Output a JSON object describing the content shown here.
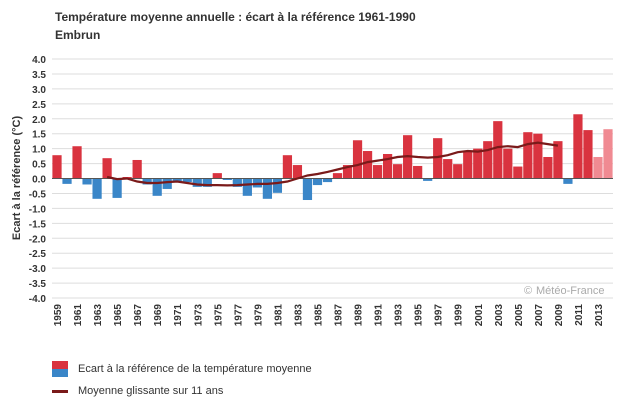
{
  "title": "Température moyenne annuelle : écart à la référence 1961-1990",
  "subtitle": "Embrun",
  "watermark": "Météo-France",
  "colors": {
    "positive": "#d9333f",
    "negative": "#3a86c8",
    "positive_provisional": "#f08a92",
    "moving_average": "#7a1a1a",
    "grid": "#dddddd"
  },
  "legend": {
    "bars_label": "Ecart à la référence de la température moyenne",
    "line_label": "Moyenne glissante sur 11 ans"
  },
  "chart_data": {
    "type": "bar",
    "ylabel": "Ecart à la référence (°C)",
    "xlabel": "",
    "ylim": [
      -4.0,
      4.0
    ],
    "ytick_step": 0.5,
    "grid": true,
    "legend_position": "bottom-left",
    "categories": [
      1959,
      1960,
      1961,
      1962,
      1963,
      1964,
      1965,
      1966,
      1967,
      1968,
      1969,
      1970,
      1971,
      1972,
      1973,
      1974,
      1975,
      1976,
      1977,
      1978,
      1979,
      1980,
      1981,
      1982,
      1983,
      1984,
      1985,
      1986,
      1987,
      1988,
      1989,
      1990,
      1991,
      1992,
      1993,
      1994,
      1995,
      1996,
      1997,
      1998,
      1999,
      2000,
      2001,
      2002,
      2003,
      2004,
      2005,
      2006,
      2007,
      2008,
      2009,
      2010,
      2011,
      2012,
      2013,
      2014
    ],
    "xtick_labels": [
      "1959",
      "1961",
      "1963",
      "1965",
      "1967",
      "1969",
      "1971",
      "1973",
      "1975",
      "1977",
      "1979",
      "1981",
      "1983",
      "1985",
      "1987",
      "1989",
      "1991",
      "1993",
      "1995",
      "1997",
      "1999",
      "2001",
      "2003",
      "2005",
      "2007",
      "2009",
      "2011",
      "2013"
    ],
    "series": [
      {
        "name": "Ecart à la référence de la température moyenne",
        "type": "bar",
        "values": [
          0.78,
          -0.18,
          1.08,
          -0.2,
          -0.68,
          0.68,
          -0.65,
          0.05,
          0.62,
          -0.2,
          -0.58,
          -0.35,
          -0.12,
          -0.12,
          -0.28,
          -0.28,
          0.18,
          -0.05,
          -0.28,
          -0.58,
          -0.3,
          -0.68,
          -0.48,
          0.78,
          0.45,
          -0.72,
          -0.22,
          -0.12,
          0.18,
          0.45,
          1.28,
          0.92,
          0.45,
          0.82,
          0.48,
          1.45,
          0.42,
          -0.08,
          1.35,
          0.65,
          0.48,
          0.9,
          1.0,
          1.25,
          1.92,
          1.0,
          0.4,
          1.55,
          1.5,
          0.72,
          1.25,
          -0.18,
          2.15,
          1.62,
          0.72,
          1.65
        ],
        "provisional_years": [
          2013,
          2014
        ]
      },
      {
        "name": "Moyenne glissante sur 11 ans",
        "type": "line",
        "x": [
          1964,
          1965,
          1966,
          1967,
          1968,
          1969,
          1970,
          1971,
          1972,
          1973,
          1974,
          1975,
          1976,
          1977,
          1978,
          1979,
          1980,
          1981,
          1982,
          1983,
          1984,
          1985,
          1986,
          1987,
          1988,
          1989,
          1990,
          1991,
          1992,
          1993,
          1994,
          1995,
          1996,
          1997,
          1998,
          1999,
          2000,
          2001,
          2002,
          2003,
          2004,
          2005,
          2006,
          2007,
          2008,
          2009
        ],
        "values": [
          0.05,
          -0.02,
          0.0,
          -0.1,
          -0.15,
          -0.15,
          -0.12,
          -0.1,
          -0.15,
          -0.2,
          -0.22,
          -0.22,
          -0.23,
          -0.22,
          -0.2,
          -0.18,
          -0.18,
          -0.15,
          -0.1,
          0.0,
          0.1,
          0.15,
          0.22,
          0.3,
          0.38,
          0.45,
          0.55,
          0.6,
          0.65,
          0.72,
          0.75,
          0.72,
          0.7,
          0.72,
          0.78,
          0.88,
          0.92,
          0.9,
          0.95,
          1.05,
          1.08,
          1.05,
          1.15,
          1.2,
          1.15,
          1.1
        ]
      }
    ]
  }
}
